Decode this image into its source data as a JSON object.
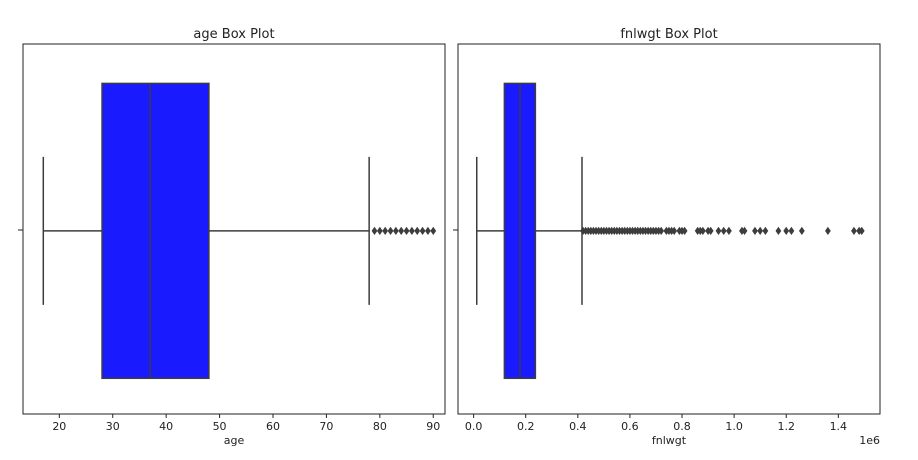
{
  "chart_data": [
    {
      "type": "boxplot",
      "title": "age Box Plot",
      "xlabel": "age",
      "ylabel": "",
      "xlim": [
        13.2,
        92.2
      ],
      "xticks": [
        20,
        30,
        40,
        50,
        60,
        70,
        80,
        90
      ],
      "tick_labels": [
        "20",
        "30",
        "40",
        "50",
        "60",
        "70",
        "80",
        "90"
      ],
      "offset_label": "",
      "box": {
        "whisker_low": 17,
        "q1": 28,
        "median": 37,
        "q3": 48,
        "whisker_high": 78
      },
      "outliers": [
        79,
        80,
        81,
        82,
        83,
        84,
        85,
        86,
        87,
        88,
        89,
        90
      ],
      "box_color": "#1a1aff",
      "line_color": "#3d3d3d"
    },
    {
      "type": "boxplot",
      "title": "fnlwgt Box Plot",
      "xlabel": "fnlwgt",
      "ylabel": "",
      "xlim": [
        -0.06,
        1.56
      ],
      "xticks": [
        0.0,
        0.2,
        0.4,
        0.6,
        0.8,
        1.0,
        1.2,
        1.4
      ],
      "tick_labels": [
        "0.0",
        "0.2",
        "0.4",
        "0.6",
        "0.8",
        "1.0",
        "1.2",
        "1.4"
      ],
      "offset_label": "1e6",
      "box": {
        "whisker_low": 0.012,
        "q1": 0.118,
        "median": 0.178,
        "q3": 0.237,
        "whisker_high": 0.416
      },
      "outliers": [
        0.42,
        0.43,
        0.44,
        0.45,
        0.46,
        0.47,
        0.48,
        0.49,
        0.5,
        0.51,
        0.52,
        0.53,
        0.54,
        0.55,
        0.56,
        0.57,
        0.58,
        0.59,
        0.6,
        0.61,
        0.62,
        0.63,
        0.64,
        0.65,
        0.66,
        0.67,
        0.68,
        0.69,
        0.7,
        0.71,
        0.72,
        0.74,
        0.75,
        0.76,
        0.77,
        0.79,
        0.8,
        0.81,
        0.86,
        0.87,
        0.88,
        0.9,
        0.91,
        0.94,
        0.96,
        0.98,
        1.03,
        1.04,
        1.08,
        1.1,
        1.12,
        1.17,
        1.2,
        1.22,
        1.26,
        1.36,
        1.46,
        1.48,
        1.49
      ],
      "box_color": "#1a1aff",
      "line_color": "#3d3d3d"
    }
  ]
}
